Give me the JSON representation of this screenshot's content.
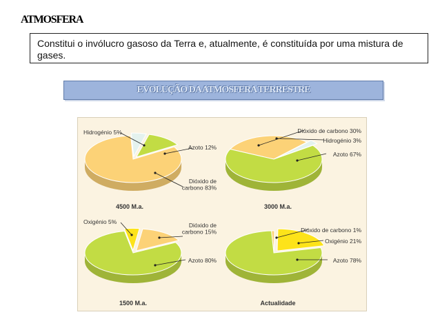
{
  "page": {
    "title": "ATMOSFERA"
  },
  "intro": {
    "text": "Constitui o invólucro gasoso da Terra e, atualmente, é constituída por uma mistura de gases."
  },
  "banner": {
    "title": "EVOLUÇÃO DA ATMOSFERA TERRESTRE"
  },
  "colors": {
    "hidrogenio": "#e4f2ee",
    "azoto": "#c2dc44",
    "dioxido": "#fcd277",
    "oxigenio": "#fde31a",
    "stroke": "#ffffff",
    "pointer": "#222222"
  },
  "chart_data": [
    {
      "type": "pie",
      "caption": "4500 M.a.",
      "slices": [
        {
          "name": "Hidrogénio",
          "label": "Hidrogénio 5%",
          "value": 5,
          "color": "#e4f2ee"
        },
        {
          "name": "Azoto",
          "label": "Azoto 12%",
          "value": 12,
          "color": "#c2dc44"
        },
        {
          "name": "Dióxido de carbono",
          "label": "Dióxido de carbono 83%",
          "label_lines": [
            "Dióxido de",
            "carbono 83%"
          ],
          "value": 83,
          "color": "#fcd277"
        }
      ]
    },
    {
      "type": "pie",
      "caption": "3000 M.a.",
      "slices": [
        {
          "name": "Dióxido de carbono",
          "label": "Dióxido de carbono 30%",
          "value": 30,
          "color": "#fcd277"
        },
        {
          "name": "Hidrogénio",
          "label": "Hidrogénio 3%",
          "value": 3,
          "color": "#e4f2ee"
        },
        {
          "name": "Azoto",
          "label": "Azoto 67%",
          "value": 67,
          "color": "#c2dc44"
        }
      ]
    },
    {
      "type": "pie",
      "caption": "1500 M.a.",
      "slices": [
        {
          "name": "Oxigénio",
          "label": "Oxigénio 5%",
          "value": 5,
          "color": "#fde31a"
        },
        {
          "name": "Dióxido de carbono",
          "label": "Dióxido de carbono 15%",
          "label_lines": [
            "Dióxido de",
            "carbono 15%"
          ],
          "value": 15,
          "color": "#fcd277"
        },
        {
          "name": "Azoto",
          "label": "Azoto 80%",
          "value": 80,
          "color": "#c2dc44"
        }
      ]
    },
    {
      "type": "pie",
      "caption": "Actualidade",
      "slices": [
        {
          "name": "Dióxido de carbono",
          "label": "Dióxido de carbono 1%",
          "value": 1,
          "color": "#fcd277"
        },
        {
          "name": "Oxigénio",
          "label": "Oxigénio 21%",
          "value": 21,
          "color": "#fde31a"
        },
        {
          "name": "Azoto",
          "label": "Azoto 78%",
          "value": 78,
          "color": "#c2dc44"
        }
      ]
    }
  ]
}
